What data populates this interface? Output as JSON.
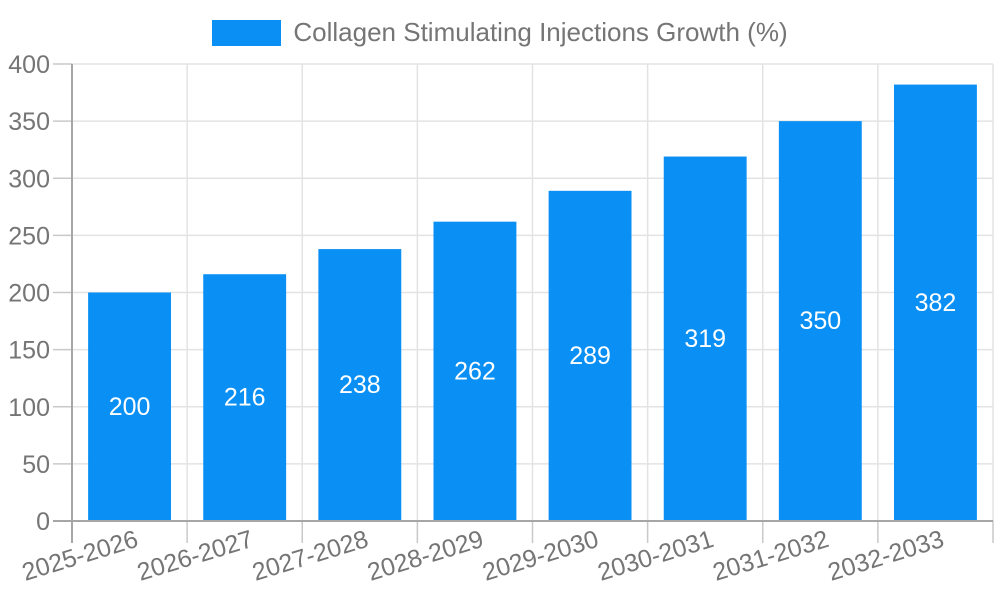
{
  "colors": {
    "text": "#757575",
    "grid_line": "#e3e3e3",
    "axis_line": "#a6a6a6",
    "tick_line": "#c9c9c9",
    "value_label": "#ffffff",
    "background": "#ffffff"
  },
  "chart_data": {
    "type": "bar",
    "categories": [
      "2025-2026",
      "2026-2027",
      "2027-2028",
      "2028-2029",
      "2029-2030",
      "2030-2031",
      "2031-2032",
      "2032-2033"
    ],
    "series": [
      {
        "name": "Collagen Stimulating Injections Growth (%)",
        "values": [
          200,
          216,
          238,
          262,
          289,
          319,
          350,
          382
        ],
        "color": "#0a90f5"
      }
    ],
    "xlabel": "",
    "ylabel": "",
    "ylim": [
      0,
      400
    ],
    "yticks": [
      0,
      50,
      100,
      150,
      200,
      250,
      300,
      350,
      400
    ],
    "grid": true,
    "legend_position": "top",
    "value_label_position": "inside-center",
    "x_label_rotation_deg": -17
  }
}
